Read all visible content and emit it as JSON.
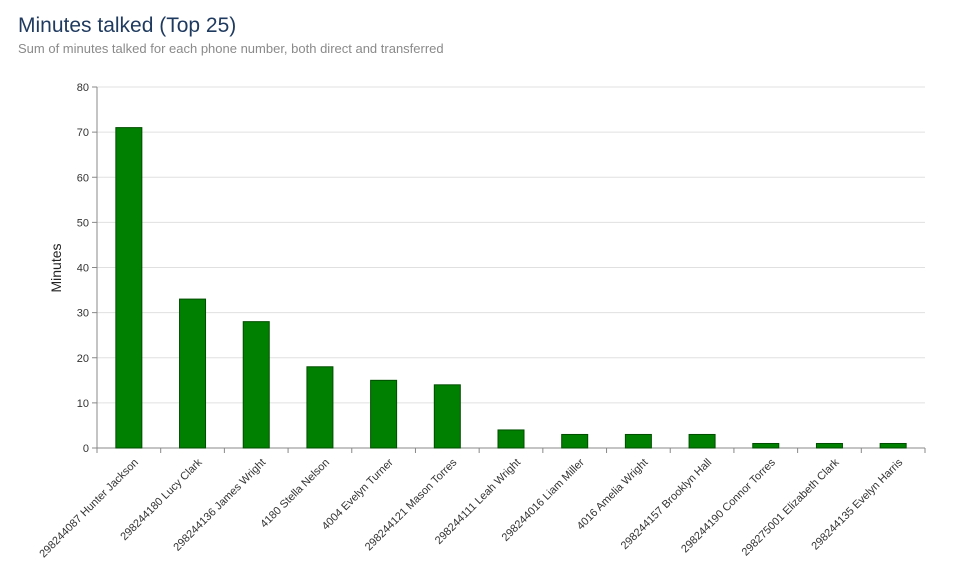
{
  "title": "Minutes talked (Top 25)",
  "subtitle": "Sum of minutes talked for each phone number, both direct and transferred",
  "colors": {
    "bar": "#008000",
    "bar_stroke": "#004d00",
    "grid": "#e0e0e0",
    "axis": "#888888"
  },
  "chart_data": {
    "type": "bar",
    "categories": [
      "298244087 Hunter Jackson",
      "298244180 Lucy Clark",
      "298244136 James Wright",
      "4180 Stella Nelson",
      "4004 Evelyn Turner",
      "298244121 Mason Torres",
      "298244111 Leah Wright",
      "298244016 Liam Miller",
      "4016 Amelia Wright",
      "298244157 Brooklyn Hall",
      "298244190 Connor Torres",
      "298275001 Elizabeth Clark",
      "298244135 Evelyn Harris"
    ],
    "values": [
      71,
      33,
      28,
      18,
      15,
      14,
      4,
      3,
      3,
      3,
      1,
      1,
      1
    ],
    "title": "Minutes talked (Top 25)",
    "xlabel": "",
    "ylabel": "Minutes",
    "ylim": [
      0,
      80
    ],
    "yticks": [
      0,
      10,
      20,
      30,
      40,
      50,
      60,
      70,
      80
    ],
    "grid": true,
    "legend": "none"
  }
}
